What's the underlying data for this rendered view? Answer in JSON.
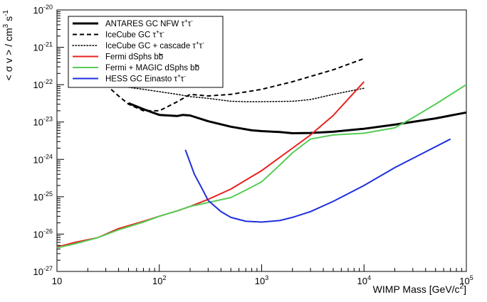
{
  "chart_data": {
    "type": "line",
    "xlabel": "WIMP Mass [GeV/c2]",
    "ylabel": "< σ v > / cm3 s-1",
    "x_scale": "log",
    "y_scale": "log",
    "xlim": [
      10,
      100000
    ],
    "ylim": [
      1e-27,
      1e-20
    ],
    "grid": false,
    "legend_position": "top-left",
    "x_ticks": [
      {
        "value": 10,
        "mantissa": "10",
        "exp": ""
      },
      {
        "value": 100,
        "mantissa": "10",
        "exp": "2"
      },
      {
        "value": 1000,
        "mantissa": "10",
        "exp": "3"
      },
      {
        "value": 10000,
        "mantissa": "10",
        "exp": "4"
      },
      {
        "value": 100000,
        "mantissa": "10",
        "exp": "5"
      }
    ],
    "y_ticks": [
      {
        "value": 1e-27,
        "mantissa": "10",
        "exp": "-27"
      },
      {
        "value": 1e-26,
        "mantissa": "10",
        "exp": "-26"
      },
      {
        "value": 1e-25,
        "mantissa": "10",
        "exp": "-25"
      },
      {
        "value": 1e-24,
        "mantissa": "10",
        "exp": "-24"
      },
      {
        "value": 1e-23,
        "mantissa": "10",
        "exp": "-23"
      },
      {
        "value": 1e-22,
        "mantissa": "10",
        "exp": "-22"
      },
      {
        "value": 1e-21,
        "mantissa": "10",
        "exp": "-21"
      },
      {
        "value": 1e-20,
        "mantissa": "10",
        "exp": "-20"
      }
    ],
    "series": [
      {
        "name": "ANTARES GC NFW τ+τ-",
        "color": "#000000",
        "style": "solid",
        "width": 3,
        "x": [
          50,
          70,
          100,
          150,
          170,
          200,
          300,
          500,
          800,
          1000,
          1500,
          2000,
          3000,
          5000,
          10000,
          20000,
          50000,
          100000
        ],
        "y": [
          3.2e-23,
          2.2e-23,
          1.55e-23,
          1.45e-23,
          1.55e-23,
          1.5e-23,
          1.05e-23,
          7.5e-24,
          6e-24,
          5.7e-24,
          5.4e-24,
          5e-24,
          5.1e-24,
          5.5e-24,
          6.6e-24,
          8.5e-24,
          1.25e-23,
          1.8e-23
        ]
      },
      {
        "name": "IceCube GC τ+τ-",
        "color": "#000000",
        "style": "dashed",
        "width": 2,
        "x": [
          30,
          40,
          50,
          70,
          100,
          150,
          200,
          300,
          500,
          1000,
          2000,
          5000,
          10000
        ],
        "y": [
          1e-22,
          5e-23,
          3e-23,
          2e-23,
          2e-23,
          3.5e-23,
          5.5e-23,
          5e-23,
          5.5e-23,
          7.5e-23,
          1.2e-22,
          2.5e-22,
          5e-22
        ]
      },
      {
        "name": "IceCube GC + cascade τ+τ-",
        "color": "#000000",
        "style": "dotted",
        "width": 1.5,
        "x": [
          30,
          50,
          70,
          100,
          150,
          200,
          300,
          500,
          700,
          1000,
          2000,
          3000,
          5000,
          10000
        ],
        "y": [
          9.5e-23,
          8.5e-23,
          7.5e-23,
          6.5e-23,
          5.5e-23,
          4.8e-23,
          4.3e-23,
          3.6e-23,
          3.5e-23,
          3.5e-23,
          3.6e-23,
          4e-23,
          5.5e-23,
          8e-23
        ]
      },
      {
        "name": "Fermi dSphs bb",
        "color": "#e8211d",
        "style": "solid",
        "width": 2,
        "x": [
          10,
          15,
          25,
          40,
          70,
          100,
          150,
          200,
          300,
          500,
          1000,
          2000,
          3000,
          5000,
          10000
        ],
        "y": [
          4.5e-27,
          6e-27,
          8e-27,
          1.4e-26,
          2.2e-26,
          3e-26,
          4.2e-26,
          5.5e-26,
          8.5e-26,
          1.6e-25,
          5e-25,
          2e-24,
          4.5e-24,
          1.5e-23,
          1.2e-22
        ]
      },
      {
        "name": "Fermi + MAGIC dSphs bb",
        "color": "#55cc55",
        "style": "solid",
        "width": 2,
        "x": [
          10,
          15,
          25,
          40,
          70,
          100,
          150,
          200,
          300,
          500,
          700,
          1000,
          1500,
          2000,
          3000,
          5000,
          10000,
          20000,
          30000,
          50000,
          100000
        ],
        "y": [
          4.3e-27,
          5.5e-27,
          8e-27,
          1.3e-26,
          2.1e-26,
          3e-26,
          4.2e-26,
          5.5e-26,
          7e-26,
          9.5e-26,
          1.5e-25,
          2.5e-25,
          7e-25,
          1.5e-24,
          3.5e-24,
          4.5e-24,
          5e-24,
          7e-24,
          1.3e-23,
          3e-23,
          1e-22
        ]
      },
      {
        "name": "HESS GC Einasto τ+τ-",
        "color": "#1f2fdd",
        "style": "solid",
        "width": 2,
        "x": [
          180,
          220,
          260,
          300,
          400,
          500,
          700,
          1000,
          1500,
          2000,
          3000,
          5000,
          10000,
          20000,
          40000,
          70000
        ],
        "y": [
          1.8e-24,
          4e-25,
          1.7e-25,
          8e-26,
          4e-26,
          2.8e-26,
          2.2e-26,
          2.1e-26,
          2.3e-26,
          2.8e-26,
          4e-26,
          7.5e-26,
          2e-25,
          6e-25,
          1.6e-24,
          3.5e-24
        ]
      }
    ],
    "legend": [
      {
        "text": "ANTARES GC NFW τ",
        "sup1": "+",
        "mid": "τ",
        "sup2": "-"
      },
      {
        "text": "IceCube GC τ",
        "sup1": "+",
        "mid": "τ",
        "sup2": "-"
      },
      {
        "text": "IceCube GC + cascade τ",
        "sup1": "+",
        "mid": "τ",
        "sup2": "-"
      },
      {
        "text": "Fermi dSphs b",
        "sup1": "",
        "mid": "b",
        "sup2": ""
      },
      {
        "text": "Fermi + MAGIC dSphs b",
        "sup1": "",
        "mid": "b",
        "sup2": ""
      },
      {
        "text": "HESS GC Einasto τ",
        "sup1": "+",
        "mid": "τ",
        "sup2": "-"
      }
    ]
  }
}
